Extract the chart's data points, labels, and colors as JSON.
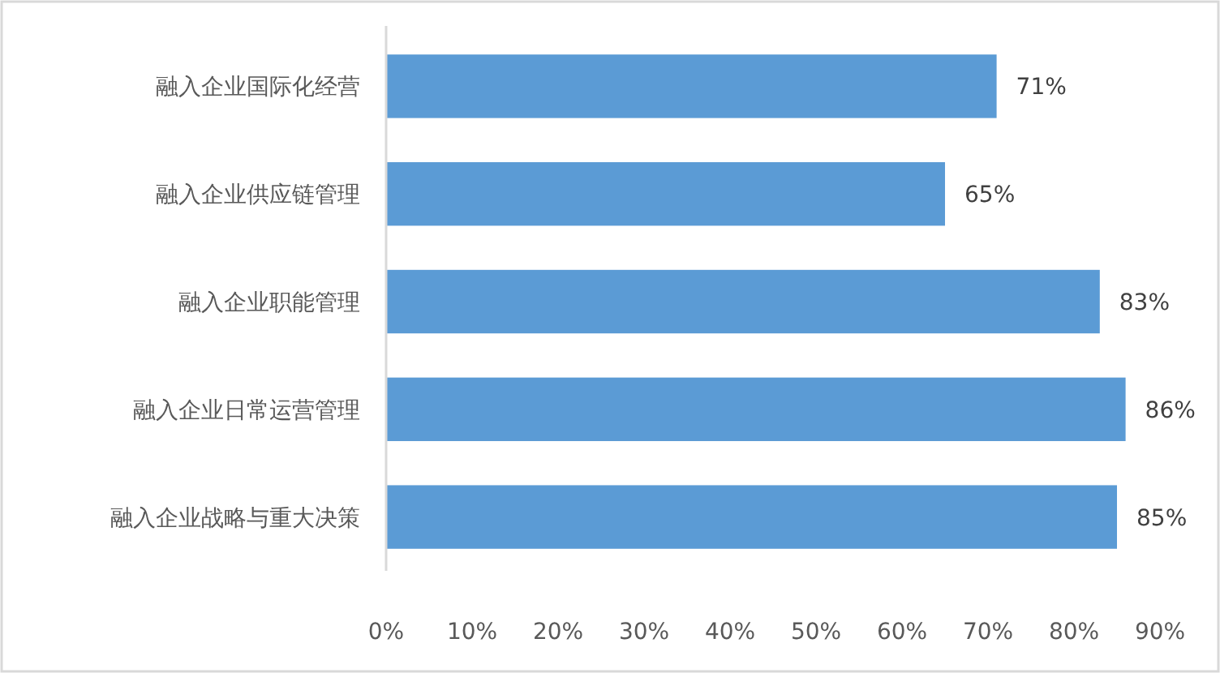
{
  "chart_data": {
    "type": "bar",
    "orientation": "horizontal",
    "categories": [
      "融入企业国际化经营",
      "融入企业供应链管理",
      "融入企业职能管理",
      "融入企业日常运营管理",
      "融入企业战略与重大决策"
    ],
    "values": [
      71,
      65,
      83,
      86,
      85
    ],
    "value_labels": [
      "71%",
      "65%",
      "83%",
      "86%",
      "85%"
    ],
    "color": "#5b9bd5",
    "xlim": [
      0,
      90
    ],
    "xticks": [
      {
        "value": 0,
        "label": "0%"
      },
      {
        "value": 10,
        "label": "10%"
      },
      {
        "value": 20,
        "label": "20%"
      },
      {
        "value": 30,
        "label": "30%"
      },
      {
        "value": 40,
        "label": "40%"
      },
      {
        "value": 50,
        "label": "50%"
      },
      {
        "value": 60,
        "label": "60%"
      },
      {
        "value": 70,
        "label": "70%"
      },
      {
        "value": 80,
        "label": "80%"
      },
      {
        "value": 90,
        "label": "90%"
      }
    ],
    "grid": false
  }
}
